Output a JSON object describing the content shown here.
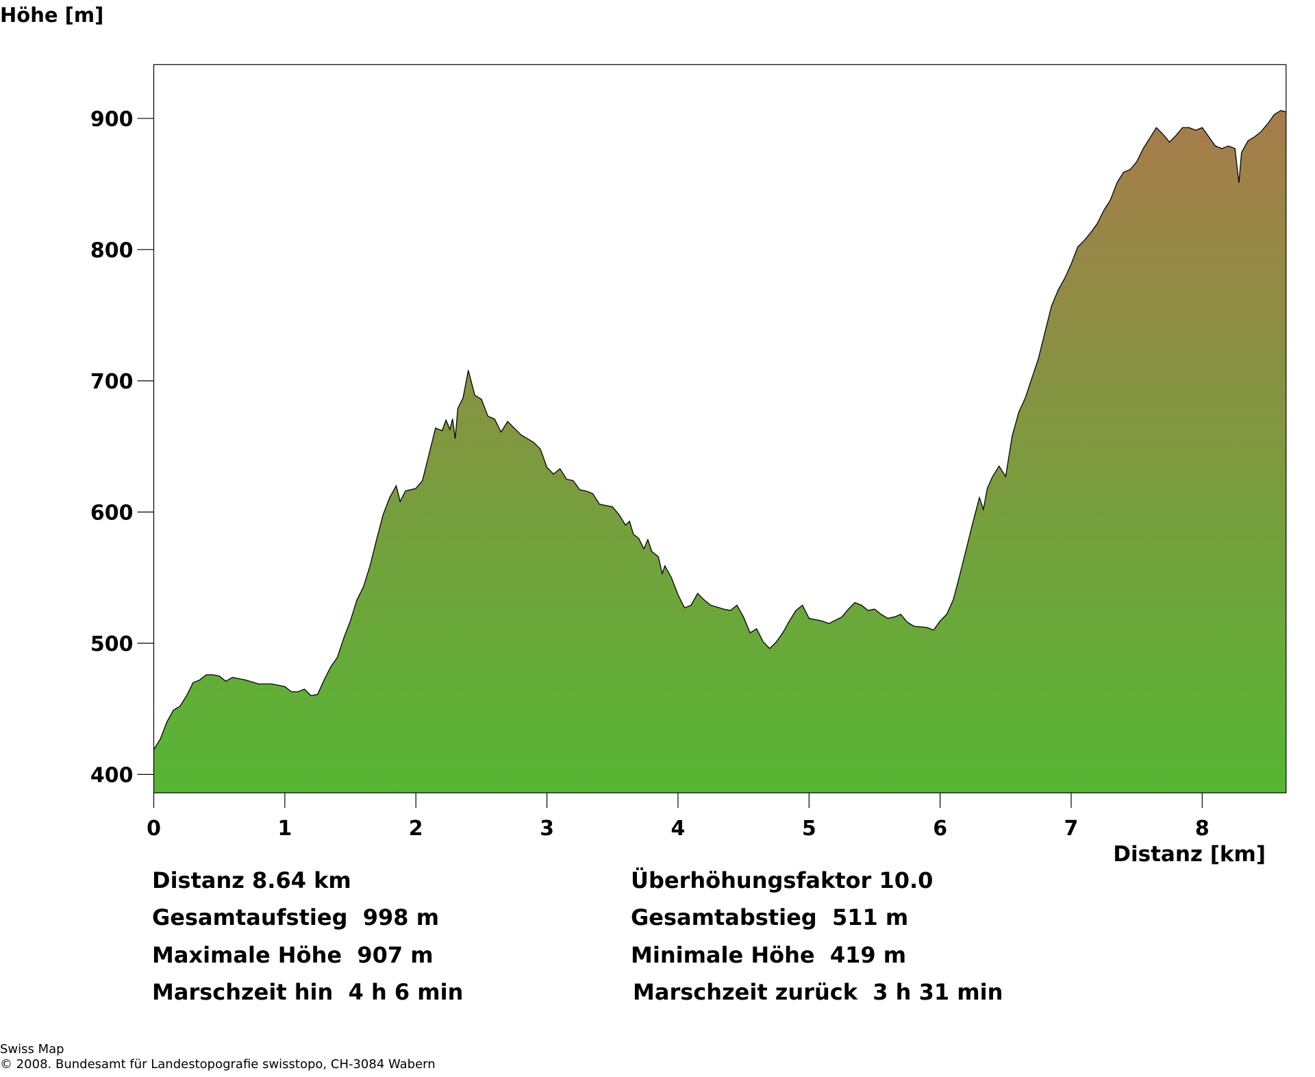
{
  "chart_data": {
    "type": "area",
    "ylabel": "Höhe [m]",
    "xlabel": "Distanz [km]",
    "xlim": [
      0,
      8.64
    ],
    "ylim": [
      386,
      941
    ],
    "xticks": [
      0,
      1,
      2,
      3,
      4,
      5,
      6,
      7,
      8
    ],
    "yticks": [
      400,
      500,
      600,
      700,
      800,
      900
    ],
    "gradient": {
      "low": "#56b634",
      "high": "#ac784c"
    },
    "line_color": "#000000",
    "x": [
      0,
      0.05,
      0.1,
      0.15,
      0.2,
      0.25,
      0.3,
      0.35,
      0.4,
      0.45,
      0.5,
      0.55,
      0.6,
      0.7,
      0.8,
      0.9,
      1.0,
      1.05,
      1.1,
      1.15,
      1.2,
      1.25,
      1.3,
      1.35,
      1.4,
      1.45,
      1.5,
      1.55,
      1.6,
      1.65,
      1.7,
      1.75,
      1.8,
      1.85,
      1.88,
      1.92,
      2.0,
      2.05,
      2.1,
      2.15,
      2.2,
      2.23,
      2.26,
      2.28,
      2.3,
      2.32,
      2.36,
      2.4,
      2.45,
      2.5,
      2.55,
      2.6,
      2.65,
      2.7,
      2.75,
      2.8,
      2.9,
      2.95,
      3.0,
      3.05,
      3.1,
      3.15,
      3.2,
      3.25,
      3.3,
      3.35,
      3.4,
      3.5,
      3.55,
      3.6,
      3.63,
      3.66,
      3.7,
      3.74,
      3.77,
      3.8,
      3.85,
      3.88,
      3.9,
      3.95,
      4.0,
      4.05,
      4.1,
      4.15,
      4.2,
      4.25,
      4.35,
      4.4,
      4.45,
      4.5,
      4.55,
      4.6,
      4.65,
      4.7,
      4.75,
      4.8,
      4.85,
      4.9,
      4.95,
      5.0,
      5.1,
      5.15,
      5.25,
      5.3,
      5.35,
      5.4,
      5.45,
      5.5,
      5.55,
      5.6,
      5.65,
      5.7,
      5.75,
      5.8,
      5.9,
      5.95,
      6.0,
      6.05,
      6.1,
      6.15,
      6.2,
      6.25,
      6.3,
      6.33,
      6.36,
      6.4,
      6.45,
      6.5,
      6.55,
      6.6,
      6.65,
      6.7,
      6.75,
      6.8,
      6.85,
      6.9,
      6.95,
      7.0,
      7.05,
      7.1,
      7.15,
      7.2,
      7.25,
      7.3,
      7.35,
      7.4,
      7.45,
      7.5,
      7.55,
      7.6,
      7.65,
      7.7,
      7.75,
      7.8,
      7.85,
      7.9,
      7.95,
      8.0,
      8.05,
      8.1,
      8.15,
      8.2,
      8.25,
      8.28,
      8.3,
      8.35,
      8.4,
      8.45,
      8.5,
      8.55,
      8.6,
      8.64
    ],
    "values": [
      419,
      427,
      440,
      449,
      452,
      460,
      470,
      472,
      476,
      476,
      475,
      471,
      474,
      472,
      469,
      469,
      467,
      463,
      463,
      465,
      460,
      461,
      472,
      482,
      489,
      504,
      517,
      533,
      543,
      559,
      579,
      598,
      611,
      620,
      608,
      616,
      618,
      624,
      644,
      664,
      662,
      670,
      663,
      671,
      656,
      679,
      687,
      708,
      689,
      686,
      673,
      671,
      661,
      669,
      664,
      659,
      653,
      648,
      634,
      629,
      633,
      625,
      624,
      617,
      616,
      614,
      606,
      604,
      598,
      590,
      593,
      583,
      580,
      572,
      579,
      570,
      566,
      553,
      559,
      550,
      537,
      527,
      529,
      538,
      533,
      529,
      526,
      525,
      529,
      520,
      508,
      511,
      501,
      496,
      501,
      508,
      517,
      525,
      529,
      519,
      517,
      515,
      520,
      526,
      531,
      529,
      525,
      526,
      522,
      519,
      520,
      522,
      516,
      513,
      512,
      510,
      517,
      522,
      533,
      552,
      572,
      592,
      611,
      602,
      618,
      627,
      635,
      627,
      658,
      676,
      687,
      702,
      717,
      737,
      757,
      769,
      778,
      789,
      802,
      807,
      813,
      820,
      830,
      838,
      851,
      859,
      861,
      867,
      877,
      885,
      893,
      888,
      882,
      887,
      893,
      893,
      891,
      893,
      886,
      879,
      877,
      879,
      877,
      851,
      874,
      883,
      886,
      890,
      896,
      903,
      906,
      905
    ],
    "stats": [
      [
        "Distanz 8.64 km",
        "Überhöhungsfaktor 10.0"
      ],
      [
        "Gesamtaufstieg  998 m",
        "Gesamtabstieg  511 m"
      ],
      [
        "Maximale Höhe  907 m",
        "Minimale Höhe  419 m"
      ],
      [
        "Marschzeit hin  4 h 6 min",
        "Marschzeit zurück  3 h 31 min"
      ]
    ],
    "footer": [
      "Swiss Map",
      "© 2008. Bundesamt für Landestopografie swisstopo, CH-3084 Wabern"
    ]
  }
}
